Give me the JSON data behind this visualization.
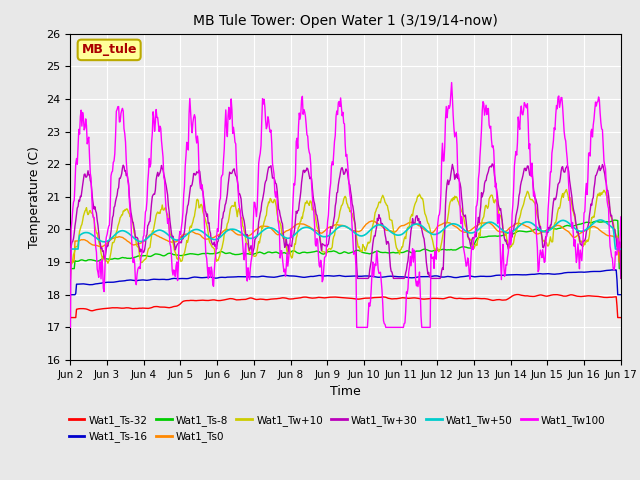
{
  "title": "MB Tule Tower: Open Water 1 (3/19/14-now)",
  "xlabel": "Time",
  "ylabel": "Temperature (C)",
  "ylim": [
    16.0,
    26.0
  ],
  "yticks": [
    16.0,
    17.0,
    18.0,
    19.0,
    20.0,
    21.0,
    22.0,
    23.0,
    24.0,
    25.0,
    26.0
  ],
  "xtick_labels": [
    "Jun 2",
    "Jun 3",
    "Jun 4",
    "Jun 5",
    "Jun 6",
    "Jun 7",
    "Jun 8",
    "Jun 9",
    "Jun 10",
    "Jun 11",
    "Jun 12",
    "Jun 13",
    "Jun 14",
    "Jun 15",
    "Jun 16",
    "Jun 17"
  ],
  "series": {
    "Wat1_Ts-32": {
      "color": "#ff0000"
    },
    "Wat1_Ts-16": {
      "color": "#0000cc"
    },
    "Wat1_Ts-8": {
      "color": "#00cc00"
    },
    "Wat1_Ts0": {
      "color": "#ff8800"
    },
    "Wat1_Tw+10": {
      "color": "#cccc00"
    },
    "Wat1_Tw+30": {
      "color": "#bb00bb"
    },
    "Wat1_Tw+50": {
      "color": "#00cccc"
    },
    "Wat1_Tw100": {
      "color": "#ff00ff"
    }
  },
  "background_color": "#e8e8e8",
  "plot_bg_color": "#ebebeb",
  "grid_color": "#ffffff",
  "label_box_text": "MB_tule",
  "label_box_bg": "#ffff99",
  "label_box_border": "#bbaa00",
  "label_text_color": "#aa0000",
  "figsize": [
    6.4,
    4.8
  ],
  "dpi": 100
}
